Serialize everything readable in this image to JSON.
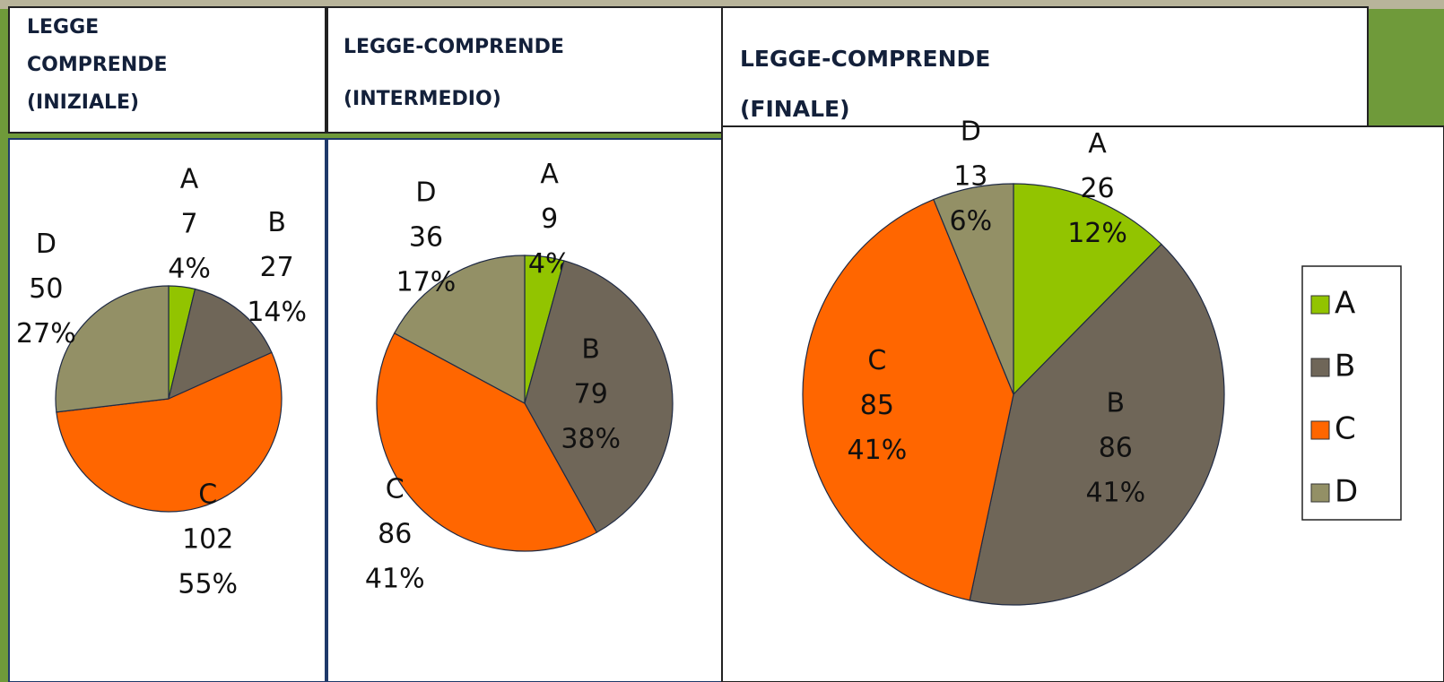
{
  "chart_data": [
    {
      "type": "pie",
      "title": "LEGGE COMPRENDE (INIZIALE)",
      "categories": [
        "A",
        "B",
        "C",
        "D"
      ],
      "values": [
        7,
        27,
        102,
        50
      ],
      "percentages": [
        4,
        14,
        55,
        27
      ],
      "percentage_labels": [
        "4%",
        "14%",
        "55%",
        "27%"
      ],
      "colors": [
        "#92c400",
        "#6f6658",
        "#ff6600",
        "#939066"
      ]
    },
    {
      "type": "pie",
      "title": "LEGGE-COMPRENDE (INTERMEDIO)",
      "categories": [
        "A",
        "B",
        "C",
        "D"
      ],
      "values": [
        9,
        79,
        86,
        36
      ],
      "percentages": [
        4,
        38,
        41,
        17
      ],
      "percentage_labels": [
        "4%",
        "38%",
        "41%",
        "17%"
      ],
      "colors": [
        "#92c400",
        "#6f6658",
        "#ff6600",
        "#939066"
      ]
    },
    {
      "type": "pie",
      "title": "LEGGE-COMPRENDE (FINALE)",
      "categories": [
        "A",
        "B",
        "C",
        "D"
      ],
      "values": [
        26,
        86,
        85,
        13
      ],
      "percentages": [
        12,
        41,
        41,
        6
      ],
      "percentage_labels": [
        "12%",
        "41%",
        "41%",
        "6%"
      ],
      "colors": [
        "#92c400",
        "#6f6658",
        "#ff6600",
        "#939066"
      ],
      "legend": "right"
    }
  ]
}
